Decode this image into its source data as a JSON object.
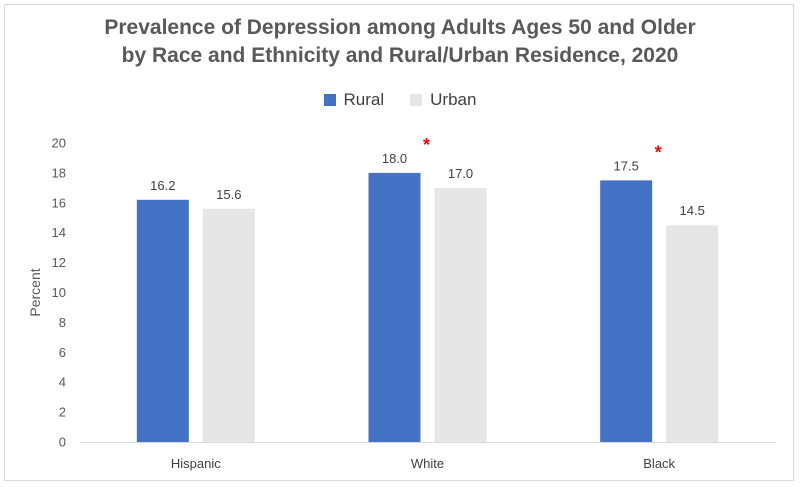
{
  "chart_data": {
    "type": "bar",
    "title_line1": "Prevalence of Depression among Adults Ages 50 and Older",
    "title_line2": "by Race and Ethnicity and Rural/Urban Residence, 2020",
    "xlabel": "",
    "ylabel": "Percent",
    "ylim": [
      0,
      20
    ],
    "yticks": [
      "0",
      "2",
      "4",
      "6",
      "8",
      "10",
      "12",
      "14",
      "16",
      "18",
      "20"
    ],
    "grid": false,
    "legend_position": "top-center",
    "categories": [
      "Hispanic",
      "White",
      "Black"
    ],
    "series": [
      {
        "name": "Rural",
        "color": "#4472c4",
        "values": [
          16.2,
          18.0,
          17.5
        ],
        "labels": [
          "16.2",
          "18.0",
          "17.5"
        ]
      },
      {
        "name": "Urban",
        "color": "#e7e6e6",
        "values": [
          15.6,
          17.0,
          14.5
        ],
        "labels": [
          "15.6",
          "17.0",
          "14.5"
        ]
      }
    ],
    "significance_marker": "*",
    "significance_color": "#ff0000",
    "significant_categories": [
      false,
      true,
      true
    ]
  }
}
